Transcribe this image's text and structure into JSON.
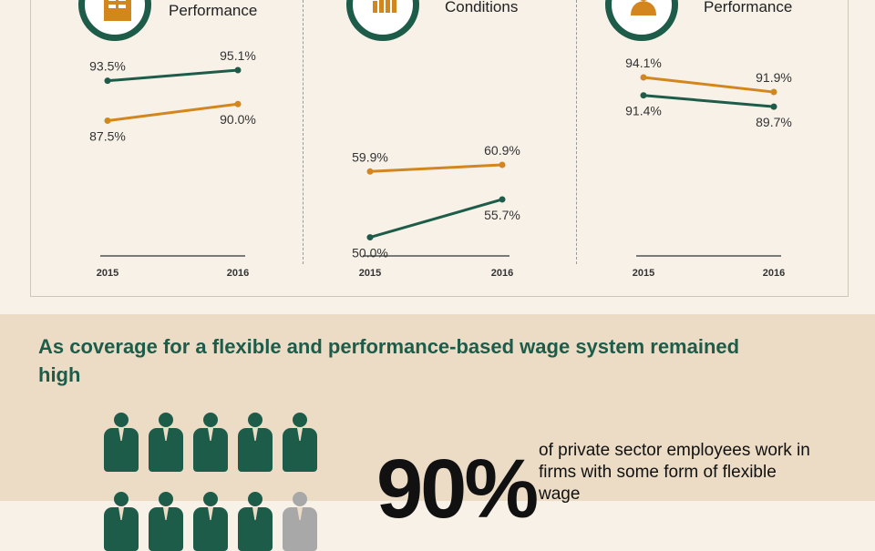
{
  "panels": [
    {
      "title": "Performance",
      "icon": "document-icon"
    },
    {
      "title": "Conditions",
      "icon": "bar-chart-icon"
    },
    {
      "title": "Performance",
      "icon": "person-icon"
    }
  ],
  "colors": {
    "green": "#1e5c4a",
    "orange": "#d4861e",
    "gray": "#a8a8a8"
  },
  "chart_data": [
    {
      "type": "line",
      "title": "Performance",
      "x": [
        "2015",
        "2016"
      ],
      "series": [
        {
          "name": "green",
          "values": [
            93.5,
            95.1
          ]
        },
        {
          "name": "orange",
          "values": [
            87.5,
            90.0
          ]
        }
      ]
    },
    {
      "type": "line",
      "title": "Conditions",
      "x": [
        "2015",
        "2016"
      ],
      "series": [
        {
          "name": "green",
          "values": [
            50.0,
            55.7
          ]
        },
        {
          "name": "orange",
          "values": [
            59.9,
            60.9
          ]
        }
      ]
    },
    {
      "type": "line",
      "title": "Performance",
      "x": [
        "2015",
        "2016"
      ],
      "series": [
        {
          "name": "green",
          "values": [
            91.4,
            89.7
          ]
        },
        {
          "name": "orange",
          "values": [
            94.1,
            91.9
          ]
        }
      ]
    }
  ],
  "section": {
    "heading": "As coverage for a flexible and performance-based wage system remained high",
    "stat": "90%",
    "description": "of private sector employees work in firms with some form of flexible wage",
    "people_filled": 9,
    "people_total": 10
  }
}
